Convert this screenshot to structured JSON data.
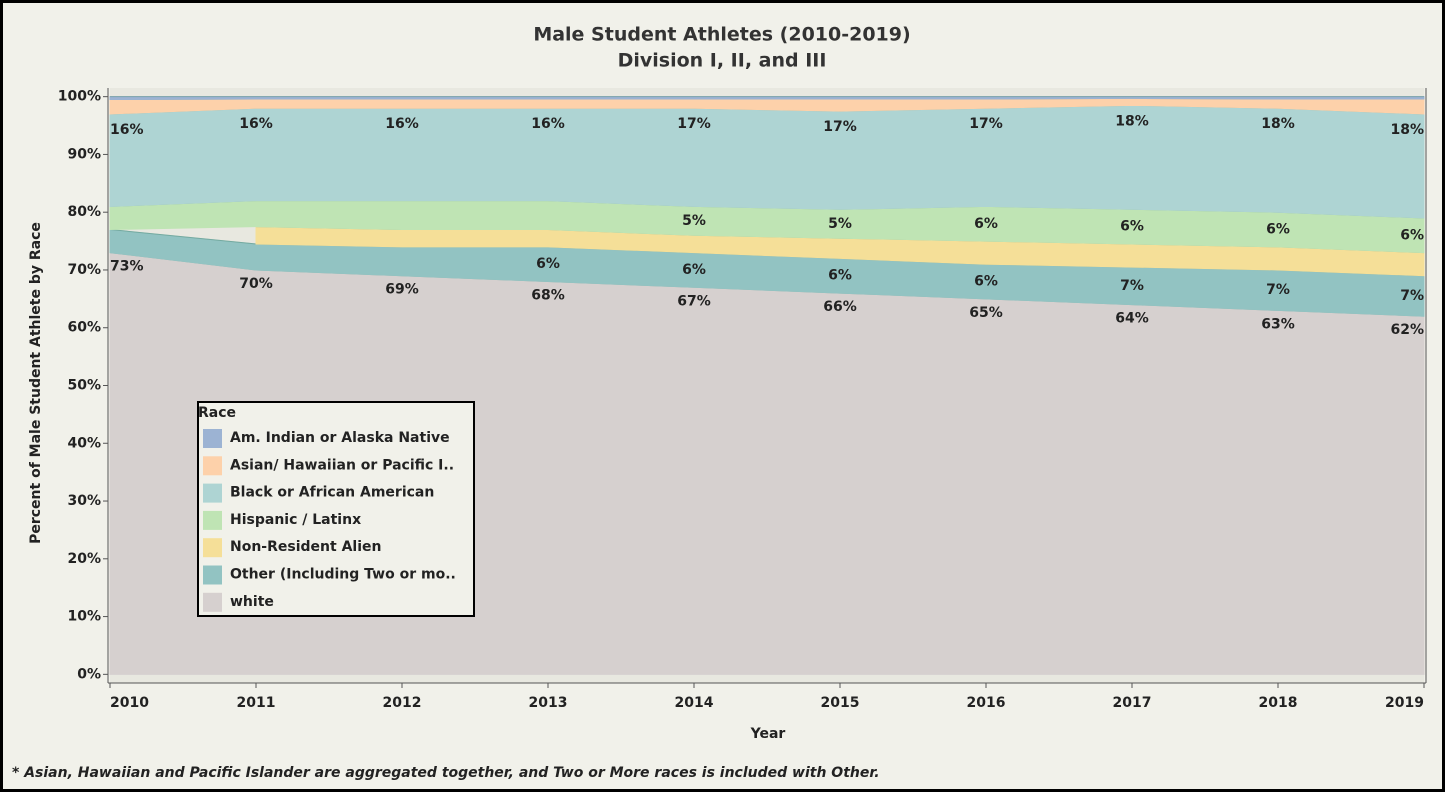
{
  "chart_data": {
    "type": "stacked-area",
    "title": "Male Student Athletes (2010-2019)",
    "subtitle": "Division I, II, and III",
    "xlabel": "Year",
    "ylabel": "Percent of Male Student Athlete by Race",
    "note": "* Asian, Hawaiian and Pacific Islander are aggregated together, and Two or More races is included with Other.",
    "legend_title": "Race",
    "x": [
      2010,
      2011,
      2012,
      2013,
      2014,
      2015,
      2016,
      2017,
      2018,
      2019
    ],
    "xlim": [
      2010,
      2019
    ],
    "xticks": [
      2010,
      2011,
      2012,
      2013,
      2014,
      2015,
      2016,
      2017,
      2018,
      2019
    ],
    "ylim": [
      -1.5,
      101.5
    ],
    "yticks": [
      {
        "value": 0,
        "label": "0%"
      },
      {
        "value": 10,
        "label": "10%"
      },
      {
        "value": 20,
        "label": "20%"
      },
      {
        "value": 30,
        "label": "30%"
      },
      {
        "value": 40,
        "label": "40%"
      },
      {
        "value": 50,
        "label": "50%"
      },
      {
        "value": 60,
        "label": "60%"
      },
      {
        "value": 70,
        "label": "70%"
      },
      {
        "value": 80,
        "label": "80%"
      },
      {
        "value": 90,
        "label": "90%"
      },
      {
        "value": 100,
        "label": "100%"
      }
    ],
    "series": [
      {
        "name": "Am. Indian or Alaska Native",
        "color": "#9cb3d3",
        "values": [
          0.5,
          0.4,
          0.4,
          0.4,
          0.4,
          0.4,
          0.4,
          0.3,
          0.4,
          0.4
        ]
      },
      {
        "name": "Asian/ Hawaiian or Pacific I..",
        "color": "#fdd1aa",
        "values": [
          2.5,
          1.6,
          1.6,
          1.6,
          1.6,
          2.1,
          1.6,
          1.2,
          1.6,
          2.6
        ]
      },
      {
        "name": "Black or African American",
        "color": "#aed4d3",
        "values": [
          16,
          16,
          16,
          16,
          17,
          17,
          17,
          18,
          18,
          18
        ],
        "value_labels": [
          "16%",
          "16%",
          "16%",
          "16%",
          "17%",
          "17%",
          "17%",
          "18%",
          "18%",
          "18%"
        ]
      },
      {
        "name": "Hispanic / Latinx",
        "color": "#bfe4b4",
        "values": [
          4,
          4.5,
          5,
          5,
          5,
          5,
          6,
          6,
          6,
          6
        ],
        "value_labels": [
          null,
          null,
          null,
          null,
          "5%",
          "5%",
          "6%",
          "6%",
          "6%",
          "6%"
        ]
      },
      {
        "name": "Non-Resident Alien",
        "color": "#f5df98",
        "values": [
          null,
          3,
          3,
          3,
          3,
          3.5,
          4,
          4,
          4,
          4
        ]
      },
      {
        "name": "Other (Including Two or mo..",
        "color": "#92c3c2",
        "values": [
          4,
          4.5,
          5,
          6,
          6,
          6,
          6,
          6.5,
          7,
          7
        ],
        "value_labels": [
          null,
          null,
          null,
          "6%",
          "6%",
          "6%",
          "6%",
          "7%",
          "7%",
          "7%"
        ]
      },
      {
        "name": "white",
        "color": "#d6d0cf",
        "values": [
          73,
          70,
          69,
          68,
          67,
          66,
          65,
          64,
          63,
          62
        ],
        "value_labels": [
          "73%",
          "70%",
          "69%",
          "68%",
          "67%",
          "66%",
          "65%",
          "64%",
          "63%",
          "62%"
        ]
      }
    ]
  }
}
